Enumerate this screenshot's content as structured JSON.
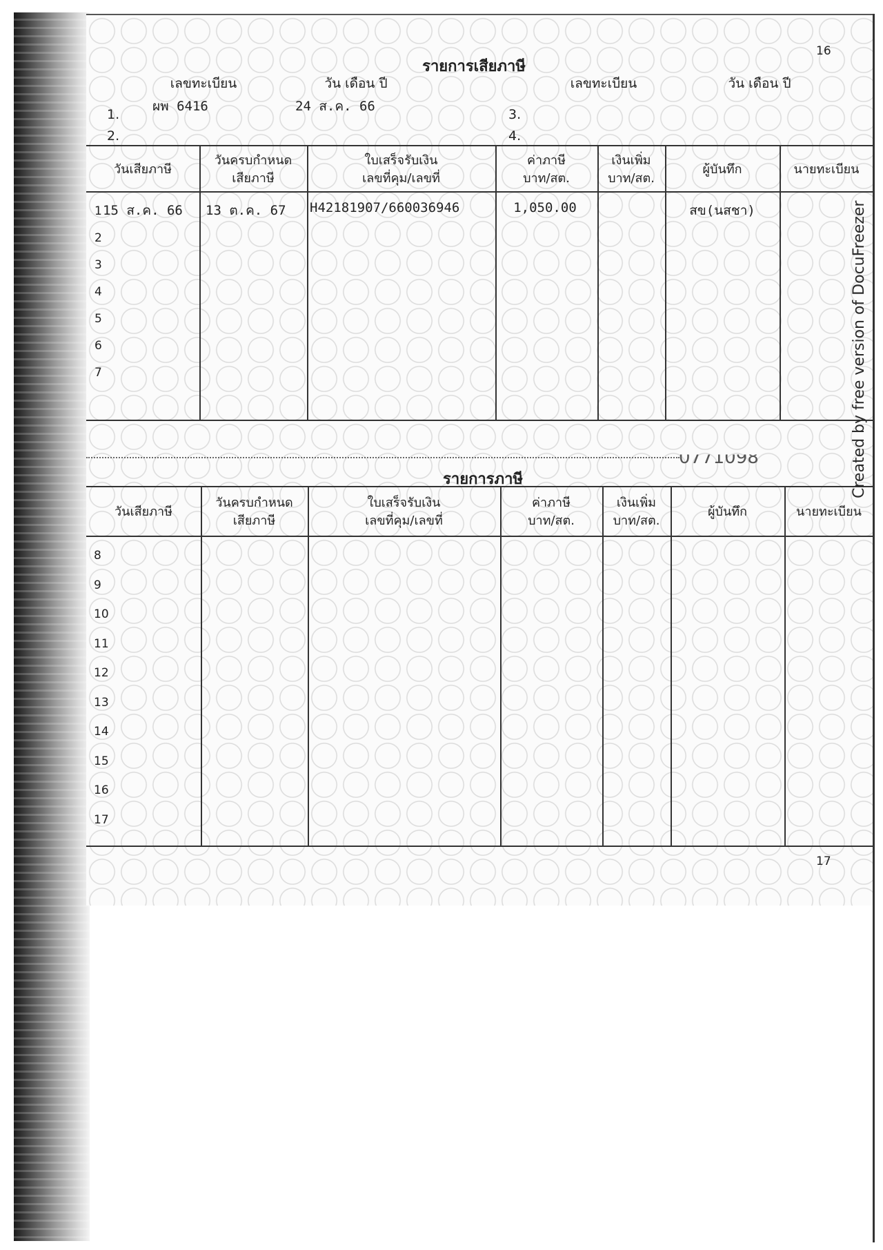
{
  "page_numbers": {
    "top": "16",
    "bottom": "17"
  },
  "section1": {
    "title": "รายการเสียภาษี",
    "reg_header_left": "เลขทะเบียน",
    "date_header_left": "วัน เดือน ปี",
    "reg_header_right": "เลขทะเบียน",
    "date_header_right": "วัน เดือน ปี",
    "entries": [
      {
        "num": "1.",
        "reg": "ผพ 6416",
        "date": "24 ส.ค. 66"
      },
      {
        "num": "2.",
        "reg": "",
        "date": ""
      },
      {
        "num": "3.",
        "reg": "",
        "date": ""
      },
      {
        "num": "4.",
        "reg": "",
        "date": ""
      }
    ],
    "columns": [
      "วันเสียภาษี",
      "วันครบกำหนด\nเสียภาษี",
      "ใบเสร็จรับเงิน\nเลขที่คุม/เลขที่",
      "ค่าภาษี\nบาท/สต.",
      "เงินเพิ่ม\nบาท/สต.",
      "ผู้บันทึก",
      "นายทะเบียน"
    ],
    "rows": [
      {
        "num": "1",
        "paid_date": "15 ส.ค. 66",
        "due_date": "13 ต.ค. 67",
        "receipt": "H42181907/660036946",
        "tax": "1,050.00",
        "surcharge": "",
        "recorder": "สข(นสชา)",
        "registrar": ""
      },
      {
        "num": "2"
      },
      {
        "num": "3"
      },
      {
        "num": "4"
      },
      {
        "num": "5"
      },
      {
        "num": "6"
      },
      {
        "num": "7"
      }
    ]
  },
  "serial_partial": "0771098",
  "section2": {
    "title": "รายการภาษี",
    "columns": [
      "วันเสียภาษี",
      "วันครบกำหนด\nเสียภาษี",
      "ใบเสร็จรับเงิน\nเลขที่คุม/เลขที่",
      "ค่าภาษี\nบาท/สต.",
      "เงินเพิ่ม\nบาท/สต.",
      "ผู้บันทึก",
      "นายทะเบียน"
    ],
    "rows": [
      "8",
      "9",
      "10",
      "11",
      "12",
      "13",
      "14",
      "15",
      "16",
      "17"
    ]
  },
  "watermark": "Created by free version of DocuFreezer"
}
